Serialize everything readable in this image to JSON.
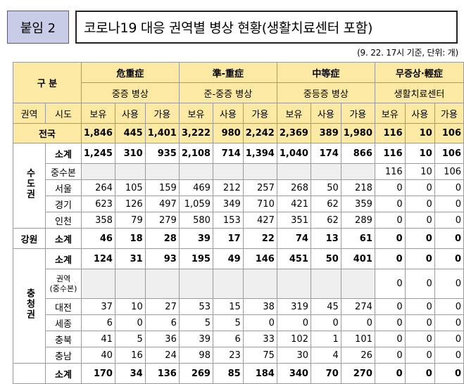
{
  "header": {
    "tag": "붙임 2",
    "title": "코로나19 대응 권역별 병상 현황(생활치료센터 포함)",
    "note": "(9. 22. 17시 기준, 단위: 개)"
  },
  "table": {
    "col_group_label": "구 분",
    "groups": [
      {
        "name": "危重症",
        "sub": "중증 병상"
      },
      {
        "name": "準-重症",
        "sub": "준-중증 병상"
      },
      {
        "name": "中等症",
        "sub": "중등증 병상"
      },
      {
        "name": "무증상·輕症",
        "sub": "생활치료센터"
      }
    ],
    "col_region": "권역",
    "col_city": "시도",
    "sub_cols": [
      "보유",
      "사용",
      "가용"
    ],
    "rows": {
      "national": {
        "label": "전국",
        "values": [
          "1,846",
          "445",
          "1,401",
          "3,222",
          "980",
          "2,242",
          "2,369",
          "389",
          "1,980",
          "116",
          "10",
          "106"
        ]
      },
      "sudo": {
        "region": "수도권",
        "subtotal": {
          "label": "소계",
          "values": [
            "1,245",
            "310",
            "935",
            "2,108",
            "714",
            "1,394",
            "1,040",
            "174",
            "866",
            "116",
            "10",
            "106"
          ]
        },
        "central": {
          "label": "중수본",
          "values": [
            "",
            "",
            "",
            "",
            "",
            "",
            "",
            "",
            "",
            "116",
            "10",
            "106"
          ]
        },
        "seoul": {
          "label": "서울",
          "values": [
            "264",
            "105",
            "159",
            "469",
            "212",
            "257",
            "268",
            "50",
            "218",
            "0",
            "0",
            "0"
          ]
        },
        "gyeonggi": {
          "label": "경기",
          "values": [
            "623",
            "126",
            "497",
            "1,059",
            "349",
            "710",
            "421",
            "62",
            "359",
            "0",
            "0",
            "0"
          ]
        },
        "incheon": {
          "label": "인천",
          "values": [
            "358",
            "79",
            "279",
            "580",
            "153",
            "427",
            "351",
            "62",
            "289",
            "0",
            "0",
            "0"
          ]
        }
      },
      "gangwon": {
        "region": "강원",
        "subtotal": {
          "label": "소계",
          "values": [
            "46",
            "18",
            "28",
            "39",
            "17",
            "22",
            "74",
            "13",
            "61",
            "0",
            "0",
            "0"
          ]
        }
      },
      "chungcheong": {
        "region": "충청권",
        "subtotal": {
          "label": "소계",
          "values": [
            "124",
            "31",
            "93",
            "195",
            "49",
            "146",
            "451",
            "50",
            "401",
            "0",
            "0",
            "0"
          ]
        },
        "central": {
          "label1": "권역",
          "label2": "(중수본)",
          "values": [
            "",
            "",
            "",
            "",
            "",
            "",
            "",
            "",
            "",
            "0",
            "0",
            "0"
          ]
        },
        "daejeon": {
          "label": "대전",
          "values": [
            "37",
            "10",
            "27",
            "53",
            "15",
            "38",
            "319",
            "45",
            "274",
            "0",
            "0",
            "0"
          ]
        },
        "sejong": {
          "label": "세종",
          "values": [
            "6",
            "0",
            "6",
            "5",
            "5",
            "0",
            "0",
            "0",
            "0",
            "0",
            "0",
            "0"
          ]
        },
        "chungbuk": {
          "label": "충북",
          "values": [
            "41",
            "5",
            "36",
            "39",
            "6",
            "33",
            "102",
            "1",
            "101",
            "0",
            "0",
            "0"
          ]
        },
        "chungnam": {
          "label": "충남",
          "values": [
            "40",
            "16",
            "24",
            "98",
            "23",
            "75",
            "30",
            "4",
            "26",
            "0",
            "0",
            "0"
          ]
        }
      },
      "next": {
        "label": "소계",
        "values": [
          "170",
          "34",
          "136",
          "269",
          "85",
          "184",
          "340",
          "70",
          "270",
          "0",
          "0",
          "0"
        ]
      }
    }
  }
}
